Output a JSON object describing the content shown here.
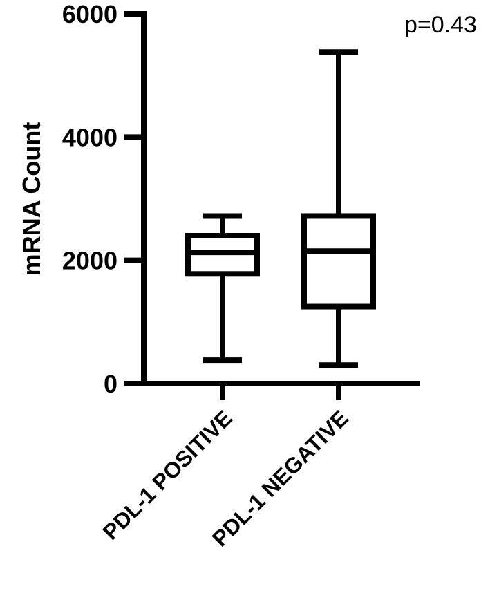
{
  "chart_data": {
    "type": "boxplot",
    "title": "",
    "xlabel": "",
    "ylabel": "mRNA Count",
    "ylim": [
      0,
      6000
    ],
    "yticks": [
      0,
      2000,
      4000,
      6000
    ],
    "yticks_labels": [
      "0",
      "2000",
      "4000",
      "6000"
    ],
    "categories": [
      "PDL-1 POSITIVE",
      "PDL-1 NEGATIVE"
    ],
    "boxes": [
      {
        "category": "PDL-1 POSITIVE",
        "min": 380,
        "q1": 1780,
        "median": 2130,
        "q3": 2400,
        "max": 2720
      },
      {
        "category": "PDL-1 NEGATIVE",
        "min": 300,
        "q1": 1250,
        "median": 2150,
        "q3": 2720,
        "max": 5380
      }
    ],
    "annotation": "p=0.43",
    "grid": false,
    "line_color": "#000000"
  }
}
